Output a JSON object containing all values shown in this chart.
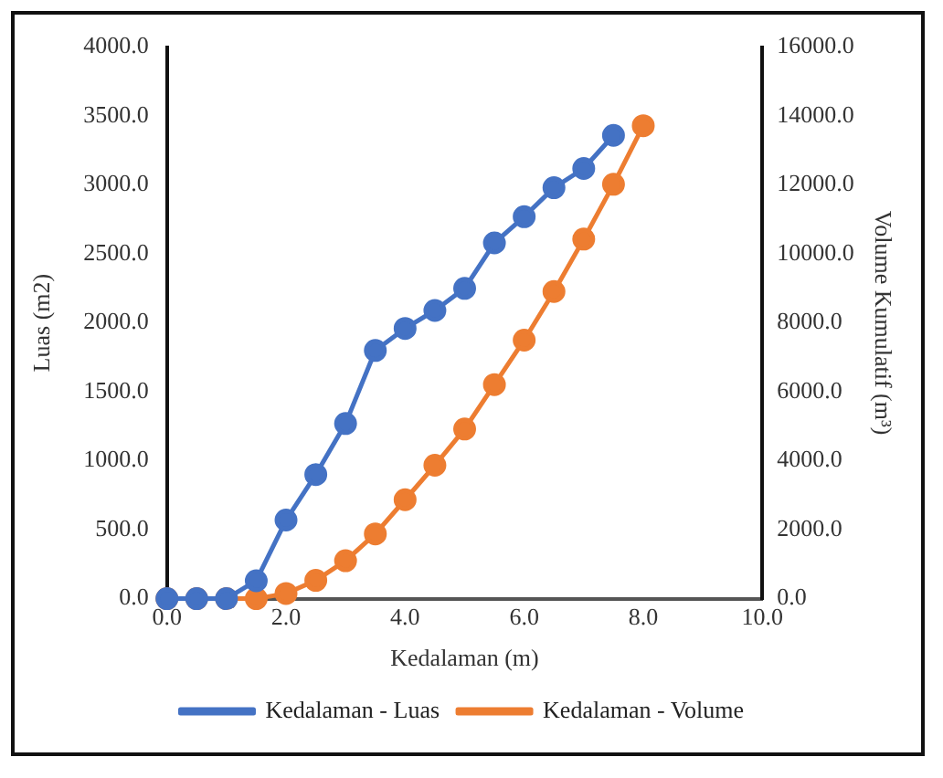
{
  "chart_data": {
    "type": "line",
    "xlabel": "Kedalaman (m)",
    "ylabel": "Luas (m2)",
    "y2label": "Volume Kumulatif (m³)",
    "x": [
      0,
      0.5,
      1,
      1.5,
      2,
      2.5,
      3,
      3.5,
      4,
      4.5,
      5,
      5.5,
      6,
      6.5,
      7,
      7.5,
      8
    ],
    "series": [
      {
        "name": "Kedalaman - Luas",
        "color": "#4472c4",
        "values": [
          0,
          0,
          0,
          130,
          570,
          900,
          1270,
          1800,
          1960,
          2090,
          2250,
          2580,
          2770,
          2980,
          3120,
          3360,
          null
        ]
      },
      {
        "name": "Kedalaman - Volume",
        "color": "#ed7d31",
        "axis": "y2",
        "values": [
          0,
          0,
          0,
          0,
          150,
          530,
          1100,
          1880,
          2870,
          3870,
          4920,
          6210,
          7500,
          8910,
          10430,
          12020,
          13720
        ]
      }
    ],
    "xlim": [
      0,
      10
    ],
    "xticks": [
      {
        "value": 0,
        "label": "0.0"
      },
      {
        "value": 2,
        "label": "2.0"
      },
      {
        "value": 4,
        "label": "4.0"
      },
      {
        "value": 6,
        "label": "6.0"
      },
      {
        "value": 8,
        "label": "8.0"
      },
      {
        "value": 10,
        "label": "10.0"
      }
    ],
    "ylim": [
      0,
      4000
    ],
    "yticks": [
      {
        "value": 0,
        "label": "0.0"
      },
      {
        "value": 500,
        "label": "500.0"
      },
      {
        "value": 1000,
        "label": "1000.0"
      },
      {
        "value": 1500,
        "label": "1500.0"
      },
      {
        "value": 2000,
        "label": "2000.0"
      },
      {
        "value": 2500,
        "label": "2500.0"
      },
      {
        "value": 3000,
        "label": "3000.0"
      },
      {
        "value": 3500,
        "label": "3500.0"
      },
      {
        "value": 4000,
        "label": "4000.0"
      }
    ],
    "y2lim": [
      0,
      16000
    ],
    "y2ticks": [
      {
        "value": 0,
        "label": "0.0"
      },
      {
        "value": 2000,
        "label": "2000.0"
      },
      {
        "value": 4000,
        "label": "4000.0"
      },
      {
        "value": 6000,
        "label": "6000.0"
      },
      {
        "value": 8000,
        "label": "8000.0"
      },
      {
        "value": 10000,
        "label": "10000.0"
      },
      {
        "value": 12000,
        "label": "12000.0"
      },
      {
        "value": 14000,
        "label": "14000.0"
      },
      {
        "value": 16000,
        "label": "16000.0"
      }
    ],
    "grid": false,
    "legend": "bottom",
    "marker": "circle",
    "line_style": "solid"
  }
}
